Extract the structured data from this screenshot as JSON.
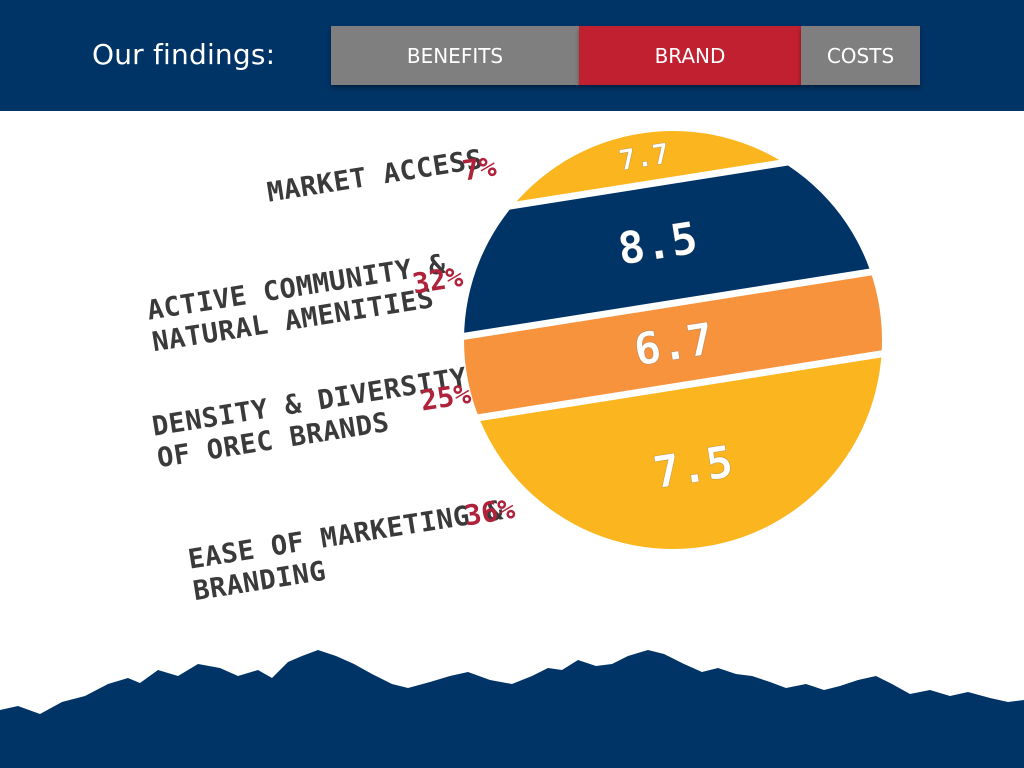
{
  "header": {
    "title": "Our findings:",
    "tabs": [
      {
        "label": "BENEFITS",
        "active": false
      },
      {
        "label": "BRAND",
        "active": true
      },
      {
        "label": "COSTS",
        "active": false
      }
    ]
  },
  "chart_data": {
    "type": "pie",
    "categories": [
      "MARKET ACCESS",
      "ACTIVE COMMUNITY & NATURAL AMENITIES",
      "DENSITY & DIVERSITY OF OREC BRANDS",
      "EASE OF MARKETING & BRANDING"
    ],
    "weights_pct": [
      7,
      32,
      25,
      36
    ],
    "weight_labels": [
      "7%",
      "32%",
      "25%",
      "36%"
    ],
    "scores": [
      7.7,
      8.5,
      6.7,
      7.5
    ],
    "score_labels": [
      "7.7",
      "8.5",
      "6.7",
      "7.5"
    ],
    "colors": [
      "#fbb51e",
      "#003366",
      "#f7923d",
      "#fbb51e"
    ]
  },
  "labels": {
    "market_access": [
      "MARKET ACCESS"
    ],
    "active_community": [
      "ACTIVE COMMUNITY &",
      "NATURAL AMENITIES"
    ],
    "density": [
      "DENSITY & DIVERSITY",
      "OF OREC BRANDS"
    ],
    "ease": [
      "EASE OF MARKETING &",
      "BRANDING"
    ]
  },
  "colors": {
    "header_bg": "#003366",
    "tab_inactive": "#7f7f7f",
    "tab_active": "#c0202f",
    "percent_text": "#b0213a",
    "mountains": "#003366"
  }
}
